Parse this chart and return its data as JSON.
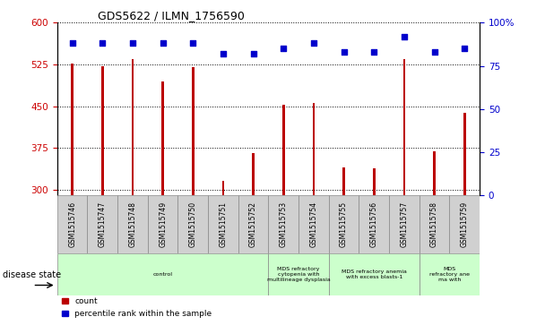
{
  "title": "GDS5622 / ILMN_1756590",
  "samples": [
    "GSM1515746",
    "GSM1515747",
    "GSM1515748",
    "GSM1515749",
    "GSM1515750",
    "GSM1515751",
    "GSM1515752",
    "GSM1515753",
    "GSM1515754",
    "GSM1515755",
    "GSM1515756",
    "GSM1515757",
    "GSM1515758",
    "GSM1515759"
  ],
  "counts": [
    527,
    521,
    535,
    495,
    520,
    315,
    365,
    453,
    456,
    340,
    338,
    535,
    368,
    438
  ],
  "percentiles": [
    88,
    88,
    88,
    88,
    88,
    82,
    82,
    85,
    88,
    83,
    83,
    92,
    83,
    85
  ],
  "ylim_left": [
    290,
    600
  ],
  "ylim_right": [
    0,
    100
  ],
  "yticks_left": [
    300,
    375,
    450,
    525,
    600
  ],
  "yticks_right": [
    0,
    25,
    50,
    75,
    100
  ],
  "bar_color": "#bb0000",
  "dot_color": "#0000cc",
  "disease_groups": [
    {
      "label": "control",
      "start": 0,
      "end": 7,
      "color": "#ccffcc"
    },
    {
      "label": "MDS refractory\ncytopenia with\nmultilineage dysplasia",
      "start": 7,
      "end": 9,
      "color": "#ccffcc"
    },
    {
      "label": "MDS refractory anemia\nwith excess blasts-1",
      "start": 9,
      "end": 12,
      "color": "#ccffcc"
    },
    {
      "label": "MDS\nrefractory ane\nma with",
      "start": 12,
      "end": 14,
      "color": "#ccffcc"
    }
  ],
  "xlabel_disease": "disease state",
  "legend_count": "count",
  "legend_percentile": "percentile rank within the sample",
  "tick_label_color_left": "#cc0000",
  "tick_label_color_right": "#0000cc",
  "bar_width": 0.08
}
